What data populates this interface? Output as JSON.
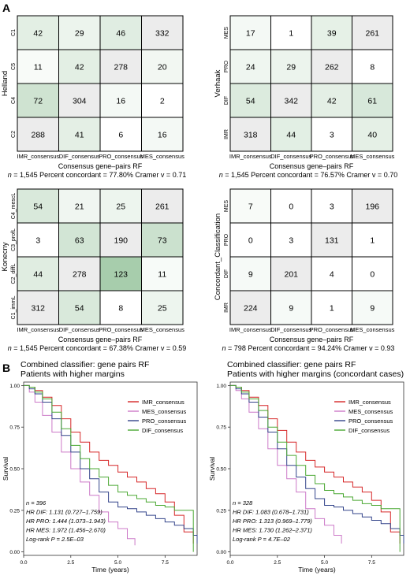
{
  "panel_labels": {
    "a": "A",
    "b": "B"
  },
  "colors": {
    "bg_gray": "#ececec",
    "line_black": "#000000",
    "curve_red": "#d62728",
    "curve_pink": "#cc79c8",
    "curve_blue": "#33448a",
    "curve_green": "#4aa832"
  },
  "chart_data": [
    {
      "type": "heatmap",
      "title": "",
      "ylabel": "Helland",
      "xlabel": "Consensus gene–pairs RF",
      "x_categories": [
        "IMR_consensus",
        "DIF_consensus",
        "PRO_consensus",
        "MES_consensus"
      ],
      "y_categories": [
        "C1",
        "C5",
        "C4",
        "C2"
      ],
      "values": [
        [
          42,
          29,
          46,
          332
        ],
        [
          11,
          42,
          278,
          20
        ],
        [
          72,
          304,
          16,
          2
        ],
        [
          288,
          41,
          6,
          16
        ]
      ],
      "stats": {
        "n": "1,545",
        "pct": "77.80%",
        "cramer": "0.71"
      }
    },
    {
      "type": "heatmap",
      "title": "",
      "ylabel": "Verhaak",
      "xlabel": "Consensus gene–pairs RF",
      "x_categories": [
        "IMR_consensus",
        "DIF_consensus",
        "PRO_consensus",
        "MES_consensus"
      ],
      "y_categories": [
        "MES",
        "PRO",
        "DIF",
        "IMR"
      ],
      "values": [
        [
          17,
          1,
          39,
          261
        ],
        [
          24,
          29,
          262,
          8
        ],
        [
          54,
          342,
          42,
          61
        ],
        [
          318,
          44,
          3,
          40
        ]
      ],
      "stats": {
        "n": "1,545",
        "pct": "76.57%",
        "cramer": "0.70"
      }
    },
    {
      "type": "heatmap",
      "title": "",
      "ylabel": "Konecny",
      "xlabel": "Consensus gene–pairs RF",
      "x_categories": [
        "IMR_consensus",
        "DIF_consensus",
        "PRO_consensus",
        "MES_consensus"
      ],
      "y_categories": [
        "C4_mescL",
        "C3_profL",
        "C2_diffL",
        "C1_immL"
      ],
      "values": [
        [
          54,
          21,
          25,
          261
        ],
        [
          3,
          63,
          190,
          73
        ],
        [
          44,
          278,
          123,
          11
        ],
        [
          312,
          54,
          8,
          25
        ]
      ],
      "stats": {
        "n": "1,545",
        "pct": "67.38%",
        "cramer": "0.59"
      }
    },
    {
      "type": "heatmap",
      "title": "",
      "ylabel": "Concordant_Classification",
      "xlabel": "Consensus gene–pairs RF",
      "x_categories": [
        "IMR_consensus",
        "DIF_consensus",
        "PRO_consensus",
        "MES_consensus"
      ],
      "y_categories": [
        "MES",
        "PRO",
        "DIF",
        "IMR"
      ],
      "values": [
        [
          7,
          0,
          3,
          196
        ],
        [
          0,
          3,
          131,
          1
        ],
        [
          9,
          201,
          4,
          0
        ],
        [
          224,
          9,
          1,
          9
        ]
      ],
      "stats": {
        "n": "798",
        "pct": "94.24%",
        "cramer": "0.93"
      }
    },
    {
      "type": "line",
      "title": "Combined classifier: gene pairs RF",
      "subtitle": "Patients with higher margins",
      "xlabel": "Time (years)",
      "ylabel": "Survival",
      "xlim": [
        0,
        9.2
      ],
      "ylim": [
        0,
        1
      ],
      "x_ticks": [
        "0.0",
        "2.5",
        "5.0",
        "7.5"
      ],
      "y_ticks": [
        "0.00",
        "0.25",
        "0.50",
        "0.75",
        "1.00"
      ],
      "legend": [
        "IMR_consensus",
        "MES_consensus",
        "PRO_consensus",
        "DIF_consensus"
      ],
      "annotation": [
        "n = 396",
        "HR DIF: 1.131 (0.727–1.759)",
        "HR PRO: 1.444 (1.073–1.943)",
        "HR MES: 1.972 (1.456–2.670)",
        "Log-rank P = 2.5E–03"
      ],
      "series": [
        {
          "name": "IMR_consensus",
          "color": "#d62728",
          "x": [
            0,
            0.3,
            0.6,
            1.0,
            1.5,
            2.0,
            2.5,
            3.0,
            3.5,
            4.0,
            4.5,
            5.0,
            5.5,
            6.0,
            6.5,
            7.0,
            7.5,
            8.0,
            8.5,
            9.0
          ],
          "y": [
            1.0,
            0.99,
            0.97,
            0.93,
            0.88,
            0.8,
            0.72,
            0.66,
            0.6,
            0.55,
            0.52,
            0.48,
            0.45,
            0.42,
            0.38,
            0.35,
            0.3,
            0.22,
            0.12,
            0.05
          ]
        },
        {
          "name": "MES_consensus",
          "color": "#cc79c8",
          "x": [
            0,
            0.3,
            0.6,
            1.0,
            1.5,
            2.0,
            2.5,
            3.0,
            3.5,
            4.0,
            4.5,
            5.0,
            5.5,
            5.9
          ],
          "y": [
            1.0,
            0.96,
            0.9,
            0.82,
            0.72,
            0.6,
            0.5,
            0.42,
            0.34,
            0.24,
            0.18,
            0.14,
            0.08,
            0.04
          ]
        },
        {
          "name": "PRO_consensus",
          "color": "#33448a",
          "x": [
            0,
            0.3,
            0.6,
            1.0,
            1.5,
            2.0,
            2.5,
            3.0,
            3.5,
            4.0,
            4.5,
            5.0,
            5.5,
            6.0,
            6.5,
            7.0,
            7.5,
            8.0,
            8.5,
            9.0,
            9.2
          ],
          "y": [
            1.0,
            0.98,
            0.95,
            0.9,
            0.8,
            0.7,
            0.6,
            0.5,
            0.44,
            0.36,
            0.3,
            0.27,
            0.26,
            0.24,
            0.22,
            0.2,
            0.18,
            0.16,
            0.14,
            0.1,
            0.05
          ]
        },
        {
          "name": "DIF_consensus",
          "color": "#4aa832",
          "x": [
            0,
            0.3,
            0.6,
            1.0,
            1.5,
            2.0,
            2.5,
            3.0,
            3.5,
            4.0,
            4.5,
            5.0,
            5.5,
            6.0,
            6.5,
            7.0,
            7.5,
            8.0,
            8.5,
            9.0
          ],
          "y": [
            1.0,
            0.99,
            0.96,
            0.92,
            0.84,
            0.74,
            0.64,
            0.56,
            0.5,
            0.45,
            0.4,
            0.36,
            0.34,
            0.32,
            0.3,
            0.28,
            0.27,
            0.25,
            0.25,
            0.0
          ]
        }
      ]
    },
    {
      "type": "line",
      "title": "Combined classifier: gene pairs RF",
      "subtitle": "Patients with higher margins (concordant cases)",
      "xlabel": "Time (years)",
      "ylabel": "Survival",
      "xlim": [
        0,
        9.2
      ],
      "ylim": [
        0,
        1
      ],
      "x_ticks": [
        "0.0",
        "2.5",
        "5.0",
        "7.5"
      ],
      "y_ticks": [
        "0.00",
        "0.25",
        "0.50",
        "0.75",
        "1.00"
      ],
      "legend": [
        "IMR_consensus",
        "MES_consensus",
        "PRO_consensus",
        "DIF_consensus"
      ],
      "annotation": [
        "n = 328",
        "HR DIF: 1.083 (0.678–1.731)",
        "HR PRO: 1.313 (0.969–1.779)",
        "HR MES: 1.730 (1.262–2.371)",
        "Log-rank P = 4.7E–02"
      ],
      "series": [
        {
          "name": "IMR_consensus",
          "color": "#d62728",
          "x": [
            0,
            0.3,
            0.6,
            1.0,
            1.5,
            2.0,
            2.5,
            3.0,
            3.5,
            4.0,
            4.5,
            5.0,
            5.5,
            6.0,
            6.5,
            7.0,
            7.5,
            8.0,
            8.5,
            9.0
          ],
          "y": [
            1.0,
            0.99,
            0.97,
            0.93,
            0.88,
            0.8,
            0.73,
            0.66,
            0.6,
            0.55,
            0.51,
            0.48,
            0.45,
            0.42,
            0.39,
            0.36,
            0.31,
            0.24,
            0.12,
            0.05
          ]
        },
        {
          "name": "MES_consensus",
          "color": "#cc79c8",
          "x": [
            0,
            0.3,
            0.6,
            1.0,
            1.5,
            2.0,
            2.5,
            3.0,
            3.5,
            4.0,
            4.5,
            5.0,
            5.5,
            5.9
          ],
          "y": [
            1.0,
            0.97,
            0.92,
            0.84,
            0.74,
            0.62,
            0.52,
            0.44,
            0.36,
            0.26,
            0.2,
            0.16,
            0.1,
            0.05
          ]
        },
        {
          "name": "PRO_consensus",
          "color": "#33448a",
          "x": [
            0,
            0.3,
            0.6,
            1.0,
            1.5,
            2.0,
            2.5,
            3.0,
            3.5,
            4.0,
            4.5,
            5.0,
            5.5,
            6.0,
            6.5,
            7.0,
            7.5,
            8.0,
            8.5,
            9.0,
            9.2
          ],
          "y": [
            1.0,
            0.98,
            0.95,
            0.9,
            0.81,
            0.72,
            0.62,
            0.52,
            0.45,
            0.38,
            0.32,
            0.28,
            0.27,
            0.25,
            0.23,
            0.21,
            0.19,
            0.17,
            0.14,
            0.1,
            0.05
          ]
        },
        {
          "name": "DIF_consensus",
          "color": "#4aa832",
          "x": [
            0,
            0.3,
            0.6,
            1.0,
            1.5,
            2.0,
            2.5,
            3.0,
            3.5,
            4.0,
            4.5,
            5.0,
            5.5,
            6.0,
            6.5,
            7.0,
            7.5,
            8.0,
            8.5,
            9.0
          ],
          "y": [
            1.0,
            0.99,
            0.96,
            0.92,
            0.85,
            0.75,
            0.66,
            0.58,
            0.52,
            0.46,
            0.41,
            0.37,
            0.35,
            0.33,
            0.31,
            0.29,
            0.28,
            0.26,
            0.26,
            0.0
          ]
        }
      ]
    }
  ]
}
